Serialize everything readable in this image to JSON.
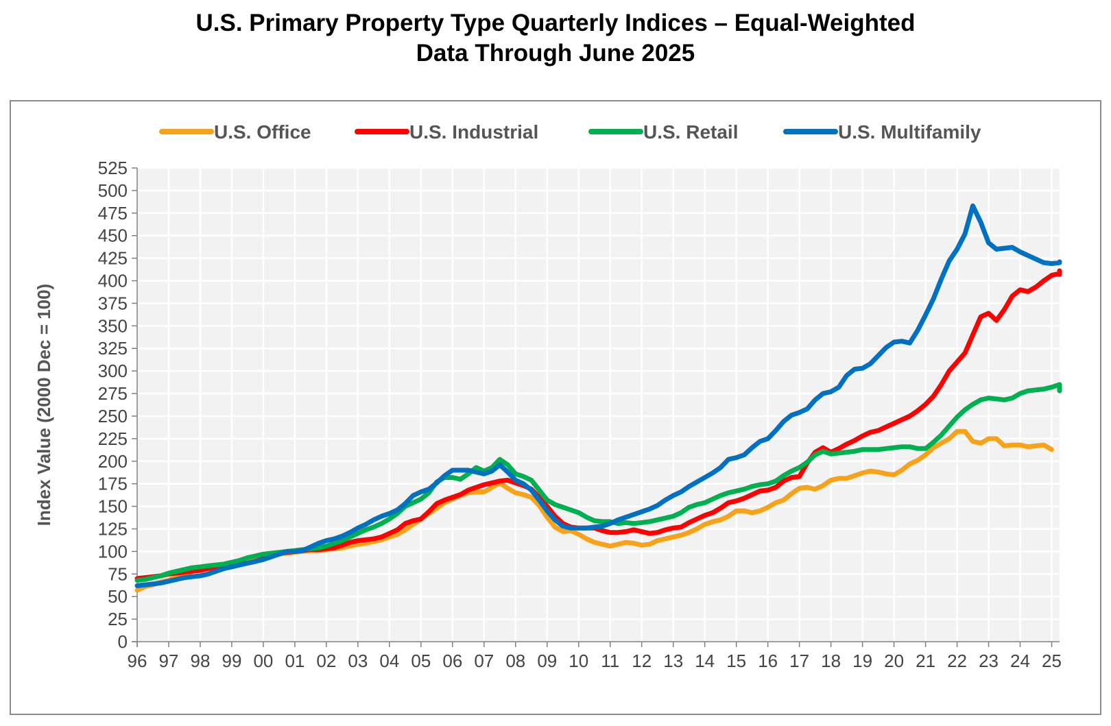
{
  "title": {
    "line1": "U.S. Primary Property Type Quarterly Indices – Equal-Weighted",
    "line2": "Data Through June 2025"
  },
  "chart_data": {
    "type": "line",
    "title": "U.S. Primary Property Type Quarterly Indices – Equal-Weighted",
    "subtitle": "Data Through June 2025",
    "xlabel": "",
    "ylabel": "Index Value (2000 Dec = 100)",
    "x_start": 1996,
    "x_step": 0.25,
    "xlim": [
      1996,
      2025.25
    ],
    "ylim": [
      0,
      525
    ],
    "y_ticks": [
      0,
      25,
      50,
      75,
      100,
      125,
      150,
      175,
      200,
      225,
      250,
      275,
      300,
      325,
      350,
      375,
      400,
      425,
      450,
      475,
      500,
      525
    ],
    "x_tick_labels": [
      "96",
      "97",
      "98",
      "99",
      "00",
      "01",
      "02",
      "03",
      "04",
      "05",
      "06",
      "07",
      "08",
      "09",
      "10",
      "11",
      "12",
      "13",
      "14",
      "15",
      "16",
      "17",
      "18",
      "19",
      "20",
      "21",
      "22",
      "23",
      "24",
      "25"
    ],
    "grid": true,
    "legend_position": "top",
    "series": [
      {
        "name": "U.S. Office",
        "color": "#f7a21b",
        "values": [
          57,
          61,
          63,
          66,
          68,
          72,
          75,
          78,
          81,
          83,
          84,
          85,
          86,
          88,
          90,
          92,
          93,
          95,
          97,
          98,
          99,
          100,
          101,
          101,
          102,
          103,
          104,
          106,
          108,
          109,
          111,
          113,
          116,
          119,
          124,
          130,
          136,
          142,
          148,
          154,
          158,
          162,
          165,
          166,
          166,
          171,
          176,
          170,
          165,
          163,
          160,
          151,
          138,
          127,
          122,
          123,
          119,
          114,
          110,
          108,
          106,
          108,
          110,
          109,
          107,
          108,
          112,
          114,
          116,
          118,
          121,
          125,
          130,
          133,
          135,
          139,
          145,
          145,
          143,
          145,
          149,
          154,
          157,
          164,
          170,
          171,
          169,
          173,
          179,
          181,
          181,
          184,
          187,
          189,
          188,
          186,
          185,
          190,
          197,
          201,
          207,
          215,
          220,
          225,
          233,
          233,
          222,
          220,
          225,
          225,
          217,
          218,
          218,
          216,
          217,
          218,
          213
        ]
      },
      {
        "name": "U.S. Industrial",
        "color": "#ff0000",
        "values": [
          70,
          71,
          72,
          73,
          75,
          76,
          77,
          78,
          79,
          81,
          82,
          84,
          85,
          86,
          87,
          89,
          92,
          95,
          98,
          99,
          100,
          101,
          102,
          102,
          103,
          104,
          107,
          110,
          112,
          113,
          114,
          116,
          120,
          124,
          131,
          134,
          136,
          144,
          153,
          157,
          160,
          163,
          168,
          171,
          174,
          176,
          178,
          179,
          176,
          173,
          169,
          160,
          150,
          139,
          131,
          127,
          126,
          126,
          126,
          123,
          121,
          121,
          122,
          124,
          122,
          120,
          121,
          124,
          126,
          127,
          132,
          136,
          140,
          143,
          148,
          154,
          156,
          159,
          163,
          167,
          168,
          171,
          178,
          182,
          183,
          198,
          210,
          215,
          210,
          214,
          219,
          223,
          228,
          232,
          234,
          238,
          242,
          246,
          250,
          256,
          263,
          272,
          285,
          300,
          310,
          320,
          340,
          360,
          364,
          356,
          368,
          383,
          390,
          388,
          393,
          400,
          406,
          408,
          407,
          409,
          411
        ]
      },
      {
        "name": "U.S. Retail",
        "color": "#00b050",
        "values": [
          68,
          69,
          71,
          73,
          76,
          78,
          80,
          82,
          83,
          84,
          85,
          86,
          88,
          90,
          93,
          95,
          97,
          98,
          99,
          100,
          101,
          102,
          103,
          104,
          106,
          109,
          112,
          116,
          120,
          124,
          127,
          131,
          136,
          142,
          150,
          154,
          158,
          165,
          177,
          182,
          182,
          180,
          186,
          193,
          189,
          193,
          202,
          196,
          186,
          183,
          179,
          168,
          157,
          152,
          149,
          146,
          143,
          138,
          134,
          133,
          133,
          131,
          132,
          131,
          132,
          133,
          135,
          137,
          139,
          143,
          149,
          152,
          154,
          158,
          162,
          165,
          167,
          169,
          172,
          174,
          175,
          178,
          184,
          189,
          193,
          199,
          207,
          211,
          208,
          209,
          210,
          211,
          213,
          213,
          213,
          214,
          215,
          216,
          216,
          214,
          214,
          221,
          229,
          239,
          249,
          257,
          263,
          268,
          270,
          269,
          268,
          270,
          275,
          278,
          279,
          280,
          282,
          285,
          285,
          284,
          278
        ]
      },
      {
        "name": "U.S. Multifamily",
        "color": "#0070c0",
        "values": [
          62,
          63,
          64,
          65,
          67,
          69,
          71,
          72,
          73,
          75,
          78,
          81,
          83,
          85,
          87,
          89,
          91,
          94,
          97,
          100,
          100,
          101,
          105,
          109,
          112,
          114,
          117,
          121,
          126,
          130,
          135,
          139,
          142,
          146,
          153,
          162,
          166,
          169,
          176,
          184,
          190,
          190,
          190,
          188,
          186,
          189,
          196,
          188,
          179,
          175,
          168,
          157,
          145,
          135,
          128,
          126,
          126,
          126,
          127,
          128,
          131,
          135,
          138,
          141,
          144,
          147,
          151,
          157,
          162,
          166,
          172,
          177,
          182,
          187,
          193,
          202,
          204,
          207,
          215,
          222,
          225,
          234,
          244,
          251,
          254,
          258,
          268,
          275,
          277,
          282,
          295,
          302,
          303,
          308,
          317,
          326,
          332,
          333,
          331,
          345,
          362,
          380,
          402,
          422,
          435,
          452,
          483,
          465,
          442,
          435,
          436,
          437,
          432,
          428,
          424,
          420,
          419,
          420,
          421
        ]
      }
    ]
  }
}
